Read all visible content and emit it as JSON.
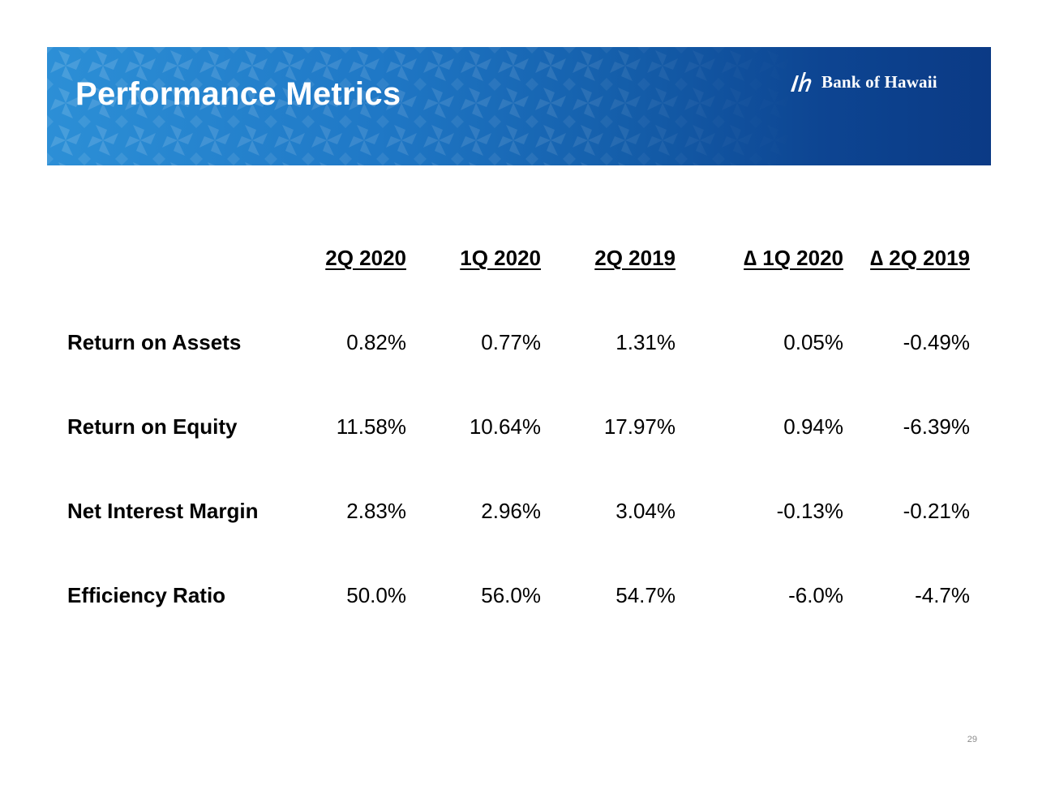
{
  "slide": {
    "title": "Performance Metrics",
    "page_number": "29"
  },
  "logo": {
    "text": "Bank of Hawaii",
    "icon": "bank-of-hawaii-logo-mark"
  },
  "colors": {
    "banner_start": "#2c8fd6",
    "banner_end": "#0b3a85",
    "text": "#000000",
    "page_number": "#8a8a8a"
  },
  "table": {
    "headers": [
      "2Q 2020",
      "1Q 2020",
      "2Q 2019",
      "∆ 1Q 2020",
      "∆ 2Q 2019"
    ],
    "rows": [
      {
        "label": "Return on Assets",
        "values": [
          "0.82%",
          "0.77%",
          "1.31%",
          "0.05%",
          "-0.49%"
        ]
      },
      {
        "label": "Return on Equity",
        "values": [
          "11.58%",
          "10.64%",
          "17.97%",
          "0.94%",
          "-6.39%"
        ]
      },
      {
        "label": "Net Interest Margin",
        "values": [
          "2.83%",
          "2.96%",
          "3.04%",
          "-0.13%",
          "-0.21%"
        ]
      },
      {
        "label": "Efficiency Ratio",
        "values": [
          "50.0%",
          "56.0%",
          "54.7%",
          "-6.0%",
          "-4.7%"
        ]
      }
    ]
  }
}
